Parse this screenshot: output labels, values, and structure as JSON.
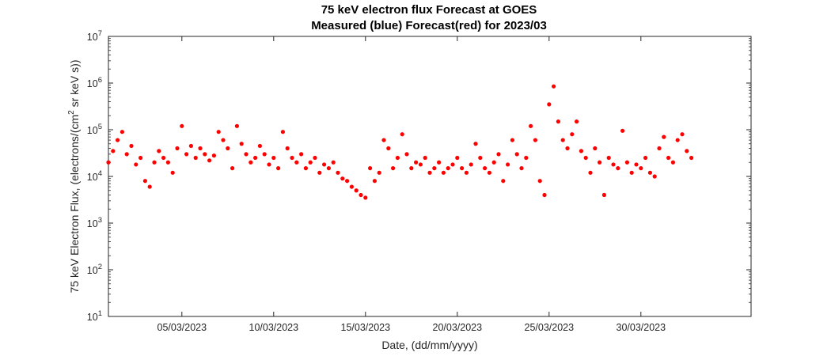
{
  "chart_data": {
    "type": "scatter",
    "title": "75 keV electron flux Forecast at GOES",
    "subtitle": "Measured (blue) Forecast(red) for 2023/03",
    "xlabel": "Date, (dd/mm/yyyy)",
    "ylabel_main": "75 keV Electron Flux, (electrons/(cm",
    "ylabel_sup": "2",
    "ylabel_tail": " sr keV s))",
    "y_scale": "log",
    "ylim": [
      10,
      10000000
    ],
    "xlim": [
      "01/03/2023 00:00",
      "05/04/2023 00:00"
    ],
    "x_ticks": [
      "05/03/2023",
      "10/03/2023",
      "15/03/2023",
      "20/03/2023",
      "25/03/2023",
      "30/03/2023"
    ],
    "y_ticks": [
      {
        "base": "10",
        "exp": "1"
      },
      {
        "base": "10",
        "exp": "2"
      },
      {
        "base": "10",
        "exp": "3"
      },
      {
        "base": "10",
        "exp": "4"
      },
      {
        "base": "10",
        "exp": "5"
      },
      {
        "base": "10",
        "exp": "6"
      },
      {
        "base": "10",
        "exp": "7"
      }
    ],
    "grid": false,
    "series": [
      {
        "color": "#ff0000",
        "marker": "filled-circle",
        "points": [
          [
            "01/03/2023 00:00",
            20000
          ],
          [
            "01/03/2023 06:00",
            35000
          ],
          [
            "01/03/2023 12:00",
            60000
          ],
          [
            "01/03/2023 18:00",
            90000
          ],
          [
            "02/03/2023 00:00",
            30000
          ],
          [
            "02/03/2023 06:00",
            45000
          ],
          [
            "02/03/2023 12:00",
            18000
          ],
          [
            "02/03/2023 18:00",
            25000
          ],
          [
            "03/03/2023 00:00",
            8000
          ],
          [
            "03/03/2023 06:00",
            6000
          ],
          [
            "03/03/2023 12:00",
            20000
          ],
          [
            "03/03/2023 18:00",
            35000
          ],
          [
            "04/03/2023 00:00",
            25000
          ],
          [
            "04/03/2023 06:00",
            20000
          ],
          [
            "04/03/2023 12:00",
            12000
          ],
          [
            "04/03/2023 18:00",
            40000
          ],
          [
            "05/03/2023 00:00",
            120000
          ],
          [
            "05/03/2023 06:00",
            30000
          ],
          [
            "05/03/2023 12:00",
            45000
          ],
          [
            "05/03/2023 18:00",
            25000
          ],
          [
            "06/03/2023 00:00",
            40000
          ],
          [
            "06/03/2023 06:00",
            30000
          ],
          [
            "06/03/2023 12:00",
            22000
          ],
          [
            "06/03/2023 18:00",
            28000
          ],
          [
            "07/03/2023 00:00",
            90000
          ],
          [
            "07/03/2023 06:00",
            60000
          ],
          [
            "07/03/2023 12:00",
            40000
          ],
          [
            "07/03/2023 18:00",
            15000
          ],
          [
            "08/03/2023 00:00",
            120000
          ],
          [
            "08/03/2023 06:00",
            50000
          ],
          [
            "08/03/2023 12:00",
            30000
          ],
          [
            "08/03/2023 18:00",
            20000
          ],
          [
            "09/03/2023 00:00",
            25000
          ],
          [
            "09/03/2023 06:00",
            45000
          ],
          [
            "09/03/2023 12:00",
            30000
          ],
          [
            "09/03/2023 18:00",
            18000
          ],
          [
            "10/03/2023 00:00",
            25000
          ],
          [
            "10/03/2023 06:00",
            15000
          ],
          [
            "10/03/2023 12:00",
            90000
          ],
          [
            "10/03/2023 18:00",
            40000
          ],
          [
            "11/03/2023 00:00",
            25000
          ],
          [
            "11/03/2023 06:00",
            20000
          ],
          [
            "11/03/2023 12:00",
            30000
          ],
          [
            "11/03/2023 18:00",
            15000
          ],
          [
            "12/03/2023 00:00",
            20000
          ],
          [
            "12/03/2023 06:00",
            25000
          ],
          [
            "12/03/2023 12:00",
            12000
          ],
          [
            "12/03/2023 18:00",
            18000
          ],
          [
            "13/03/2023 00:00",
            15000
          ],
          [
            "13/03/2023 06:00",
            20000
          ],
          [
            "13/03/2023 12:00",
            12000
          ],
          [
            "13/03/2023 18:00",
            9000
          ],
          [
            "14/03/2023 00:00",
            8000
          ],
          [
            "14/03/2023 06:00",
            6000
          ],
          [
            "14/03/2023 12:00",
            5000
          ],
          [
            "14/03/2023 18:00",
            4000
          ],
          [
            "15/03/2023 00:00",
            3500
          ],
          [
            "15/03/2023 06:00",
            15000
          ],
          [
            "15/03/2023 12:00",
            8000
          ],
          [
            "15/03/2023 18:00",
            12000
          ],
          [
            "16/03/2023 00:00",
            60000
          ],
          [
            "16/03/2023 06:00",
            40000
          ],
          [
            "16/03/2023 12:00",
            15000
          ],
          [
            "16/03/2023 18:00",
            25000
          ],
          [
            "17/03/2023 00:00",
            80000
          ],
          [
            "17/03/2023 06:00",
            30000
          ],
          [
            "17/03/2023 12:00",
            15000
          ],
          [
            "17/03/2023 18:00",
            20000
          ],
          [
            "18/03/2023 00:00",
            18000
          ],
          [
            "18/03/2023 06:00",
            25000
          ],
          [
            "18/03/2023 12:00",
            12000
          ],
          [
            "18/03/2023 18:00",
            15000
          ],
          [
            "19/03/2023 00:00",
            20000
          ],
          [
            "19/03/2023 06:00",
            12000
          ],
          [
            "19/03/2023 12:00",
            15000
          ],
          [
            "19/03/2023 18:00",
            18000
          ],
          [
            "20/03/2023 00:00",
            25000
          ],
          [
            "20/03/2023 06:00",
            15000
          ],
          [
            "20/03/2023 12:00",
            12000
          ],
          [
            "20/03/2023 18:00",
            18000
          ],
          [
            "21/03/2023 00:00",
            50000
          ],
          [
            "21/03/2023 06:00",
            25000
          ],
          [
            "21/03/2023 12:00",
            15000
          ],
          [
            "21/03/2023 18:00",
            12000
          ],
          [
            "22/03/2023 00:00",
            20000
          ],
          [
            "22/03/2023 06:00",
            30000
          ],
          [
            "22/03/2023 12:00",
            8000
          ],
          [
            "22/03/2023 18:00",
            18000
          ],
          [
            "23/03/2023 00:00",
            60000
          ],
          [
            "23/03/2023 06:00",
            30000
          ],
          [
            "23/03/2023 12:00",
            15000
          ],
          [
            "23/03/2023 18:00",
            25000
          ],
          [
            "24/03/2023 00:00",
            120000
          ],
          [
            "24/03/2023 06:00",
            60000
          ],
          [
            "24/03/2023 12:00",
            8000
          ],
          [
            "24/03/2023 18:00",
            4000
          ],
          [
            "25/03/2023 00:00",
            350000
          ],
          [
            "25/03/2023 06:00",
            850000
          ],
          [
            "25/03/2023 12:00",
            150000
          ],
          [
            "25/03/2023 18:00",
            60000
          ],
          [
            "26/03/2023 00:00",
            40000
          ],
          [
            "26/03/2023 06:00",
            80000
          ],
          [
            "26/03/2023 12:00",
            150000
          ],
          [
            "26/03/2023 18:00",
            35000
          ],
          [
            "27/03/2023 00:00",
            25000
          ],
          [
            "27/03/2023 06:00",
            12000
          ],
          [
            "27/03/2023 12:00",
            40000
          ],
          [
            "27/03/2023 18:00",
            20000
          ],
          [
            "28/03/2023 00:00",
            4000
          ],
          [
            "28/03/2023 06:00",
            25000
          ],
          [
            "28/03/2023 12:00",
            18000
          ],
          [
            "28/03/2023 18:00",
            15000
          ],
          [
            "29/03/2023 00:00",
            95000
          ],
          [
            "29/03/2023 06:00",
            20000
          ],
          [
            "29/03/2023 12:00",
            12000
          ],
          [
            "29/03/2023 18:00",
            18000
          ],
          [
            "30/03/2023 00:00",
            15000
          ],
          [
            "30/03/2023 06:00",
            25000
          ],
          [
            "30/03/2023 12:00",
            12000
          ],
          [
            "30/03/2023 18:00",
            10000
          ],
          [
            "31/03/2023 00:00",
            40000
          ],
          [
            "31/03/2023 06:00",
            70000
          ],
          [
            "31/03/2023 12:00",
            25000
          ],
          [
            "31/03/2023 18:00",
            20000
          ],
          [
            "01/04/2023 00:00",
            60000
          ],
          [
            "01/04/2023 06:00",
            80000
          ],
          [
            "01/04/2023 12:00",
            35000
          ],
          [
            "01/04/2023 18:00",
            25000
          ]
        ]
      }
    ]
  }
}
